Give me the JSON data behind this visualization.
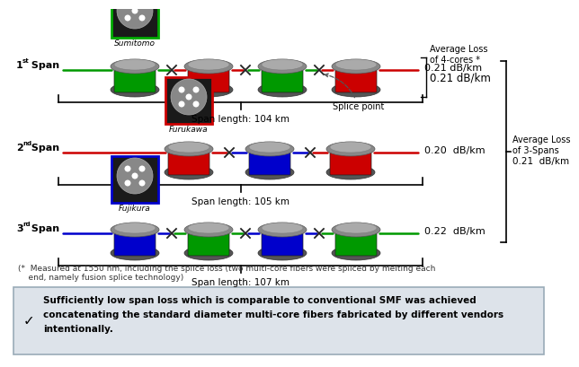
{
  "main_bg": "#ffffff",
  "footer_bg": "#dde3ea",
  "spans": [
    {
      "label": "1",
      "sup": "st",
      "vendor": "Sumitomo",
      "vendor_border": "#00aa00",
      "span_length": "Span length: 104 km",
      "loss": "0.21 dB/km",
      "spool_colors": [
        "#009900",
        "#cc0000",
        "#009900",
        "#cc0000"
      ],
      "wire_colors_between": [
        "#009900",
        "#cc0000",
        "#009900"
      ],
      "wire_left_color": "#009900",
      "wire_right_color": "#cc0000"
    },
    {
      "label": "2",
      "sup": "nd",
      "vendor": "Furukawa",
      "vendor_border": "#cc0000",
      "span_length": "Span length: 105 km",
      "loss": "0.20  dB/km",
      "spool_colors": [
        "#cc0000",
        "#0000cc",
        "#cc0000"
      ],
      "wire_colors_between": [
        "#cc0000",
        "#0000cc"
      ],
      "wire_left_color": "#cc0000",
      "wire_right_color": "#cc0000"
    },
    {
      "label": "3",
      "sup": "rd",
      "vendor": "Fujikura",
      "vendor_border": "#0000cc",
      "span_length": "Span length: 107 km",
      "loss": "0.22  dB/km",
      "spool_colors": [
        "#0000cc",
        "#009900",
        "#0000cc",
        "#009900"
      ],
      "wire_colors_between": [
        "#0000cc",
        "#009900",
        "#0000cc"
      ],
      "wire_left_color": "#0000cc",
      "wire_right_color": "#009900"
    }
  ],
  "avg_loss_4cores_line1": "Average Loss",
  "avg_loss_4cores_line2": "of 4-cores",
  "avg_loss_4cores_sup": " *",
  "avg_loss_4cores_val": "0.21 dB/km",
  "avg_loss_3spans_line1": "Average Loss",
  "avg_loss_3spans_line2": "of 3-Spans",
  "avg_loss_3spans_val": "0.21  dB/km",
  "splice_point_label": "Splice point",
  "footnote": "(*  Measured at 1550 nm, including the splice loss (two multi-core fibers were spliced by melting each\n    end, namely fusion splice technology)",
  "footer_check": "✓",
  "footer_text_line1": "Sufficiently low span loss which is comparable to conventional SMF was achieved",
  "footer_text_line2": "concatenating the standard diameter multi-core fibers fabricated by different vendors",
  "footer_text_line3": "intentionally."
}
